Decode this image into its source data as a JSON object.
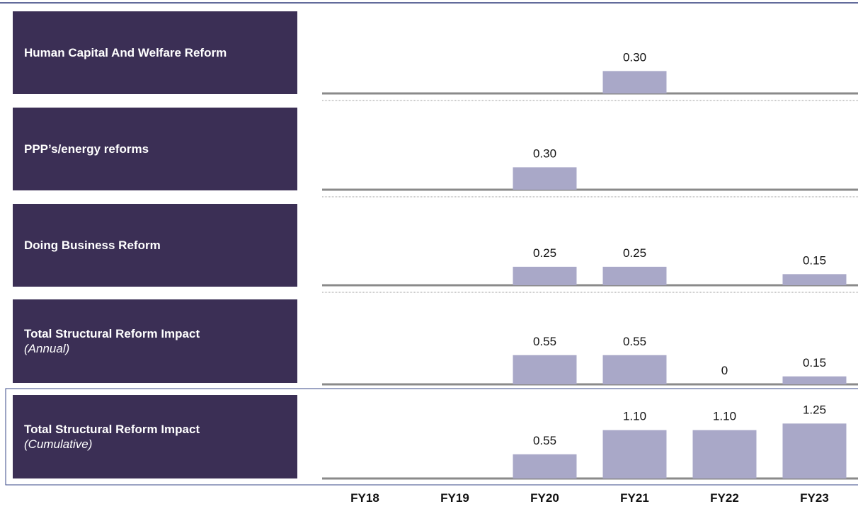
{
  "chart_data": [
    {
      "type": "bar",
      "title": "Human Capital And Welfare Reform",
      "values": [
        null,
        null,
        null,
        0.3,
        null,
        null
      ],
      "value_labels": [
        null,
        null,
        null,
        "0.30",
        null,
        null
      ],
      "color": "#a9a8c8",
      "ylim": [
        0,
        1.1
      ]
    },
    {
      "type": "bar",
      "title": "PPP’s/energy reforms",
      "values": [
        null,
        null,
        0.3,
        null,
        null,
        null
      ],
      "value_labels": [
        null,
        null,
        "0.30",
        null,
        null,
        null
      ],
      "color": "#a9a8c8",
      "ylim": [
        0,
        1.1
      ]
    },
    {
      "type": "bar",
      "title": "Doing Business Reform",
      "values": [
        null,
        null,
        0.25,
        0.25,
        null,
        0.15
      ],
      "value_labels": [
        null,
        null,
        "0.25",
        "0.25",
        null,
        "0.15"
      ],
      "color": "#a9a8c8",
      "ylim": [
        0,
        1.1
      ]
    },
    {
      "type": "bar",
      "title": "Total Structural Reform Impact",
      "subtitle": "(Annual)",
      "values": [
        null,
        null,
        0.55,
        0.55,
        0,
        0.15
      ],
      "value_labels": [
        null,
        null,
        "0.55",
        "0.55",
        null,
        "0.15"
      ],
      "color": "#a9a8c8",
      "ylim": [
        0,
        1.6
      ]
    },
    {
      "type": "bar",
      "title": "Total Structural Reform Impact",
      "subtitle": "(Cumulative)",
      "categories": [
        "FY18",
        "FY19",
        "FY20",
        "FY21",
        "FY22",
        "FY23"
      ],
      "values": [
        null,
        null,
        0.55,
        1.1,
        1.1,
        1.25
      ],
      "value_labels": [
        null,
        null,
        "0.55",
        "1.10",
        "1.10",
        "1.25"
      ],
      "color": "#a9a8c8",
      "ylim": [
        0,
        1.9
      ]
    }
  ]
}
